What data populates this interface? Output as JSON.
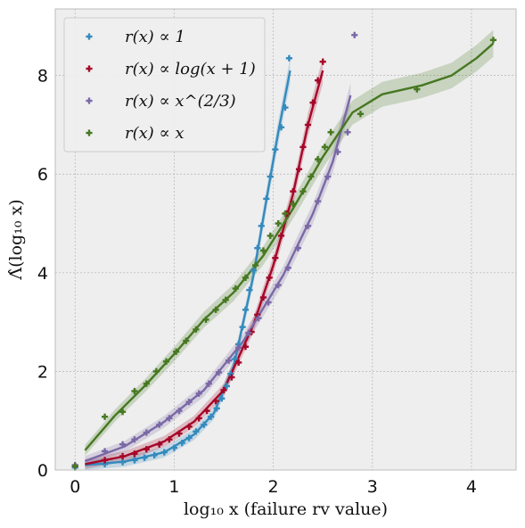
{
  "chart_data": {
    "type": "scatter",
    "xlabel": "log₁₀ x (failure rv value)",
    "ylabel": "Λ̂(log₁₀ x)",
    "xlim": [
      -0.2,
      4.45
    ],
    "ylim": [
      0,
      9.35
    ],
    "xticks": [
      "0",
      "1",
      "2",
      "3",
      "4"
    ],
    "yticks": [
      "0",
      "2",
      "4",
      "6",
      "8"
    ],
    "grid": true,
    "legend_position": "top-left",
    "series": [
      {
        "name": "r(x) ∝ 1",
        "color": "#348ABD",
        "points": [
          [
            0,
            0.05
          ],
          [
            0.3,
            0.12
          ],
          [
            0.48,
            0.16
          ],
          [
            0.6,
            0.2
          ],
          [
            0.7,
            0.25
          ],
          [
            0.8,
            0.3
          ],
          [
            0.9,
            0.36
          ],
          [
            1.0,
            0.45
          ],
          [
            1.08,
            0.55
          ],
          [
            1.15,
            0.65
          ],
          [
            1.22,
            0.78
          ],
          [
            1.3,
            0.92
          ],
          [
            1.37,
            1.08
          ],
          [
            1.43,
            1.25
          ],
          [
            1.48,
            1.45
          ],
          [
            1.53,
            1.7
          ],
          [
            1.57,
            1.95
          ],
          [
            1.61,
            2.25
          ],
          [
            1.65,
            2.55
          ],
          [
            1.69,
            2.9
          ],
          [
            1.72,
            3.25
          ],
          [
            1.76,
            3.65
          ],
          [
            1.8,
            4.05
          ],
          [
            1.84,
            4.5
          ],
          [
            1.88,
            4.95
          ],
          [
            1.93,
            5.5
          ],
          [
            1.97,
            5.95
          ],
          [
            2.02,
            6.5
          ],
          [
            2.08,
            6.95
          ],
          [
            2.12,
            7.35
          ],
          [
            2.16,
            8.35
          ]
        ],
        "fit": [
          [
            0.1,
            0.1
          ],
          [
            0.5,
            0.17
          ],
          [
            0.9,
            0.36
          ],
          [
            1.2,
            0.72
          ],
          [
            1.4,
            1.15
          ],
          [
            1.6,
            2.1
          ],
          [
            1.8,
            3.95
          ],
          [
            1.95,
            5.7
          ],
          [
            2.05,
            6.85
          ],
          [
            2.17,
            8.1
          ]
        ]
      },
      {
        "name": "r(x) ∝ log(x + 1)",
        "color": "#A60628",
        "points": [
          [
            0.0,
            0.08
          ],
          [
            0.3,
            0.2
          ],
          [
            0.48,
            0.28
          ],
          [
            0.6,
            0.33
          ],
          [
            0.72,
            0.42
          ],
          [
            0.85,
            0.52
          ],
          [
            0.95,
            0.62
          ],
          [
            1.05,
            0.74
          ],
          [
            1.15,
            0.88
          ],
          [
            1.25,
            1.05
          ],
          [
            1.33,
            1.2
          ],
          [
            1.42,
            1.4
          ],
          [
            1.5,
            1.62
          ],
          [
            1.58,
            1.88
          ],
          [
            1.65,
            2.18
          ],
          [
            1.72,
            2.5
          ],
          [
            1.78,
            2.8
          ],
          [
            1.84,
            3.15
          ],
          [
            1.9,
            3.5
          ],
          [
            1.96,
            3.9
          ],
          [
            2.02,
            4.3
          ],
          [
            2.08,
            4.75
          ],
          [
            2.14,
            5.2
          ],
          [
            2.2,
            5.65
          ],
          [
            2.26,
            6.1
          ],
          [
            2.3,
            6.55
          ],
          [
            2.35,
            7.0
          ],
          [
            2.4,
            7.45
          ],
          [
            2.45,
            7.9
          ],
          [
            2.5,
            8.28
          ]
        ],
        "fit": [
          [
            0.1,
            0.12
          ],
          [
            0.5,
            0.28
          ],
          [
            0.9,
            0.58
          ],
          [
            1.2,
            0.98
          ],
          [
            1.5,
            1.62
          ],
          [
            1.8,
            2.95
          ],
          [
            2.0,
            4.15
          ],
          [
            2.2,
            5.6
          ],
          [
            2.35,
            7.0
          ],
          [
            2.5,
            8.1
          ]
        ]
      },
      {
        "name": "r(x) ∝ x^(2/3)",
        "color": "#7A68A6",
        "points": [
          [
            0.0,
            0.1
          ],
          [
            0.3,
            0.38
          ],
          [
            0.48,
            0.52
          ],
          [
            0.6,
            0.62
          ],
          [
            0.72,
            0.76
          ],
          [
            0.85,
            0.92
          ],
          [
            0.95,
            1.05
          ],
          [
            1.05,
            1.2
          ],
          [
            1.15,
            1.38
          ],
          [
            1.25,
            1.55
          ],
          [
            1.35,
            1.75
          ],
          [
            1.45,
            1.98
          ],
          [
            1.55,
            2.22
          ],
          [
            1.65,
            2.48
          ],
          [
            1.75,
            2.78
          ],
          [
            1.85,
            3.08
          ],
          [
            1.95,
            3.4
          ],
          [
            2.05,
            3.75
          ],
          [
            2.15,
            4.1
          ],
          [
            2.25,
            4.5
          ],
          [
            2.35,
            4.95
          ],
          [
            2.45,
            5.45
          ],
          [
            2.55,
            5.95
          ],
          [
            2.65,
            6.45
          ],
          [
            2.75,
            6.85
          ],
          [
            2.82,
            8.82
          ]
        ],
        "fit": [
          [
            0.1,
            0.18
          ],
          [
            0.5,
            0.48
          ],
          [
            0.9,
            0.98
          ],
          [
            1.3,
            1.62
          ],
          [
            1.7,
            2.62
          ],
          [
            2.1,
            3.95
          ],
          [
            2.4,
            5.2
          ],
          [
            2.6,
            6.25
          ],
          [
            2.78,
            7.6
          ]
        ]
      },
      {
        "name": "r(x) ∝ x",
        "color": "#467821",
        "points": [
          [
            0.0,
            0.08
          ],
          [
            0.3,
            1.08
          ],
          [
            0.48,
            1.18
          ],
          [
            0.6,
            1.6
          ],
          [
            0.72,
            1.75
          ],
          [
            0.82,
            2.0
          ],
          [
            0.92,
            2.2
          ],
          [
            1.02,
            2.4
          ],
          [
            1.12,
            2.62
          ],
          [
            1.22,
            2.85
          ],
          [
            1.32,
            3.05
          ],
          [
            1.42,
            3.25
          ],
          [
            1.52,
            3.45
          ],
          [
            1.62,
            3.68
          ],
          [
            1.72,
            3.9
          ],
          [
            1.82,
            4.15
          ],
          [
            1.9,
            4.45
          ],
          [
            1.97,
            4.75
          ],
          [
            2.05,
            5.0
          ],
          [
            2.12,
            5.2
          ],
          [
            2.2,
            5.4
          ],
          [
            2.3,
            5.65
          ],
          [
            2.38,
            5.95
          ],
          [
            2.45,
            6.3
          ],
          [
            2.52,
            6.55
          ],
          [
            2.58,
            6.85
          ],
          [
            2.88,
            7.22
          ],
          [
            3.45,
            7.72
          ],
          [
            4.22,
            8.72
          ]
        ],
        "fit": [
          [
            0.1,
            0.4
          ],
          [
            0.4,
            1.1
          ],
          [
            0.7,
            1.7
          ],
          [
            1.0,
            2.35
          ],
          [
            1.3,
            3.05
          ],
          [
            1.6,
            3.6
          ],
          [
            1.9,
            4.35
          ],
          [
            2.2,
            5.3
          ],
          [
            2.5,
            6.35
          ],
          [
            2.8,
            7.25
          ],
          [
            3.1,
            7.62
          ],
          [
            3.5,
            7.8
          ],
          [
            3.8,
            8.0
          ],
          [
            4.05,
            8.35
          ],
          [
            4.22,
            8.65
          ]
        ]
      }
    ]
  }
}
